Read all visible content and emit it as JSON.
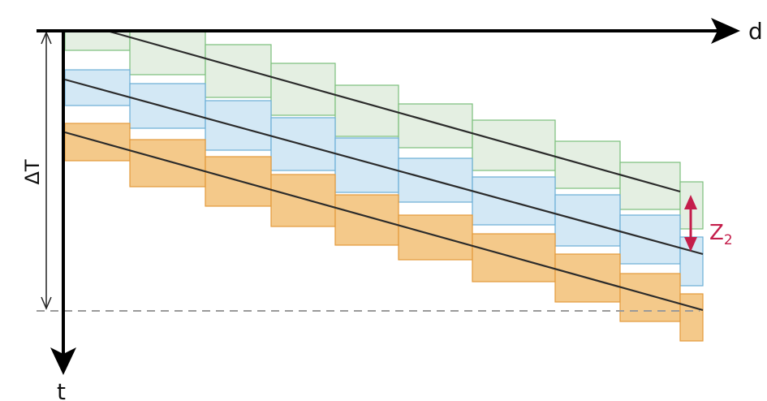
{
  "labels": {
    "x_axis": "d",
    "y_axis": "t",
    "delta_t": "ΔT",
    "z_main": "Z",
    "z_sub": "2"
  },
  "colors": {
    "green_fill": "#e4efe2",
    "green_stroke": "#7bbf7b",
    "blue_fill": "#d3e8f5",
    "blue_stroke": "#6aaed6",
    "orange_fill": "#f4c98a",
    "orange_stroke": "#e39a3a",
    "line": "#2b2b2b",
    "arrow": "#c41e4b"
  },
  "dashed_level": "ΔT"
}
